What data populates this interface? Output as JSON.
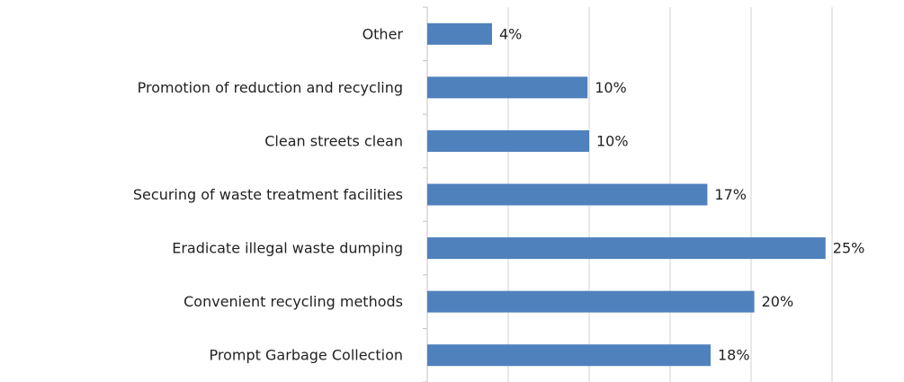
{
  "chart_data": {
    "type": "barh",
    "categories": [
      "Other",
      "Promotion of reduction and recycling",
      "Clean streets clean",
      "Securing of waste treatment facilities",
      "Eradicate illegal waste dumping",
      "Convenient recycling methods",
      "Prompt Garbage Collection"
    ],
    "values": [
      4.0,
      9.9,
      10.0,
      17.3,
      24.6,
      20.2,
      17.5
    ],
    "value_labels": [
      "4%",
      "10%",
      "10%",
      "17%",
      "25%",
      "20%",
      "18%"
    ],
    "color": "#4f81bd",
    "xlim": [
      0,
      25
    ],
    "xticks": [
      0,
      5,
      10,
      15,
      20,
      25
    ],
    "grid": true
  }
}
